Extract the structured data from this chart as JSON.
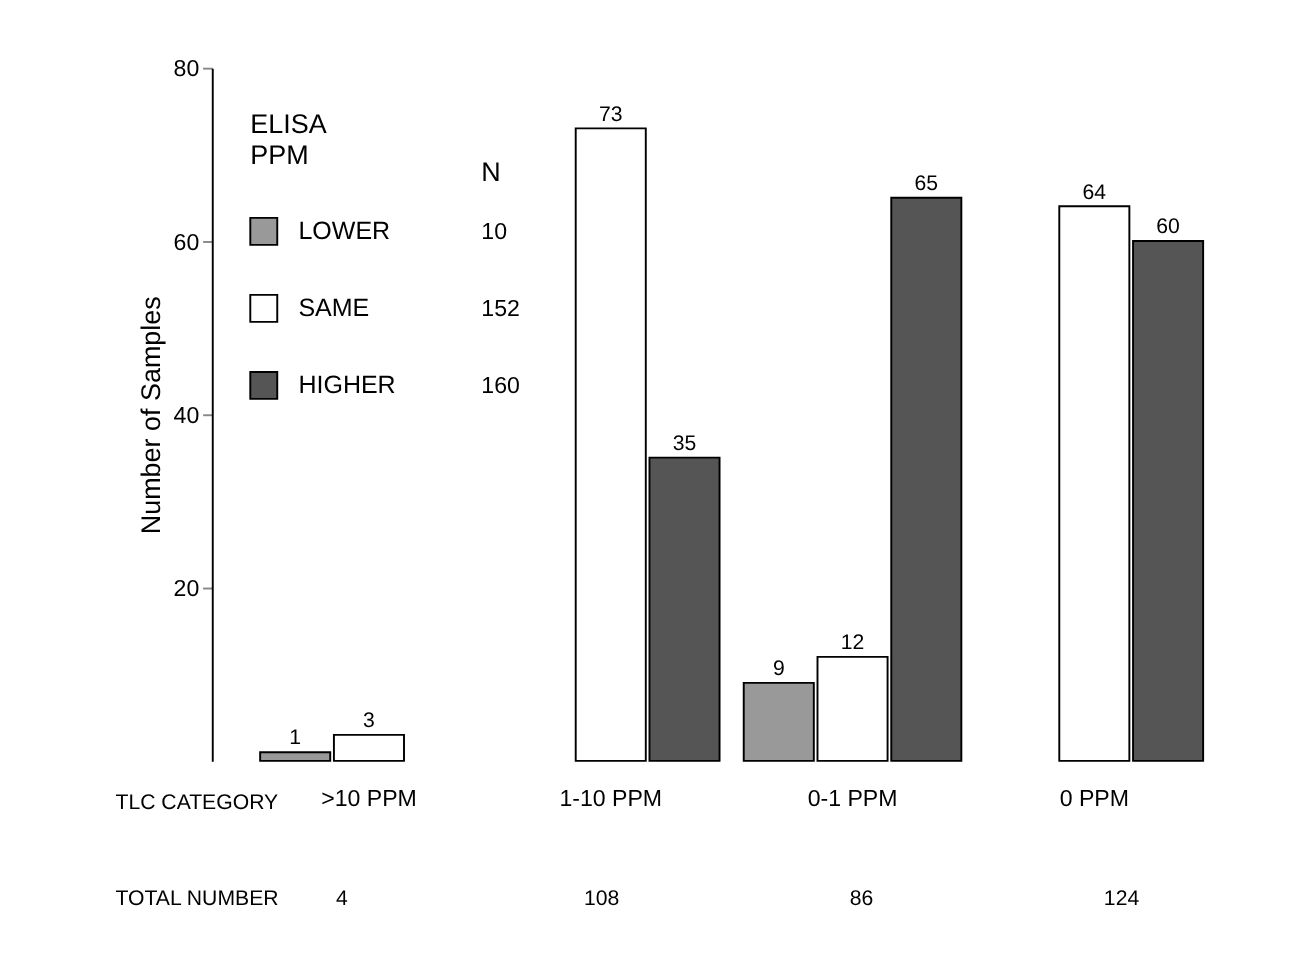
{
  "chart_data": {
    "type": "bar",
    "ylabel": "Number of Samples",
    "xlabel": "TLC CATEGORY",
    "categories": [
      ">10 PPM",
      "1-10 PPM",
      "0-1 PPM",
      "0 PPM"
    ],
    "series": [
      {
        "name": "LOWER",
        "color": "#999999",
        "values": [
          1,
          null,
          9,
          null
        ],
        "value_labels": [
          "1",
          null,
          "9",
          null
        ]
      },
      {
        "name": "SAME",
        "color": "#ffffff",
        "values": [
          3,
          73,
          12,
          64
        ],
        "value_labels": [
          "3",
          "73",
          "12",
          "64"
        ]
      },
      {
        "name": "HIGHER",
        "color": "#555555",
        "values": [
          null,
          35,
          65,
          60
        ],
        "value_labels": [
          null,
          "35",
          "65",
          "60"
        ]
      }
    ],
    "legend_title": "ELISA PPM",
    "legend": "top left",
    "annotations": [
      "N",
      "10",
      "152",
      "160",
      "TOTAL NUMBER",
      "4",
      "108",
      "86",
      "124"
    ],
    "ylim": [
      0,
      80
    ],
    "yticks": [
      20,
      40,
      60,
      80
    ],
    "grid": false
  }
}
